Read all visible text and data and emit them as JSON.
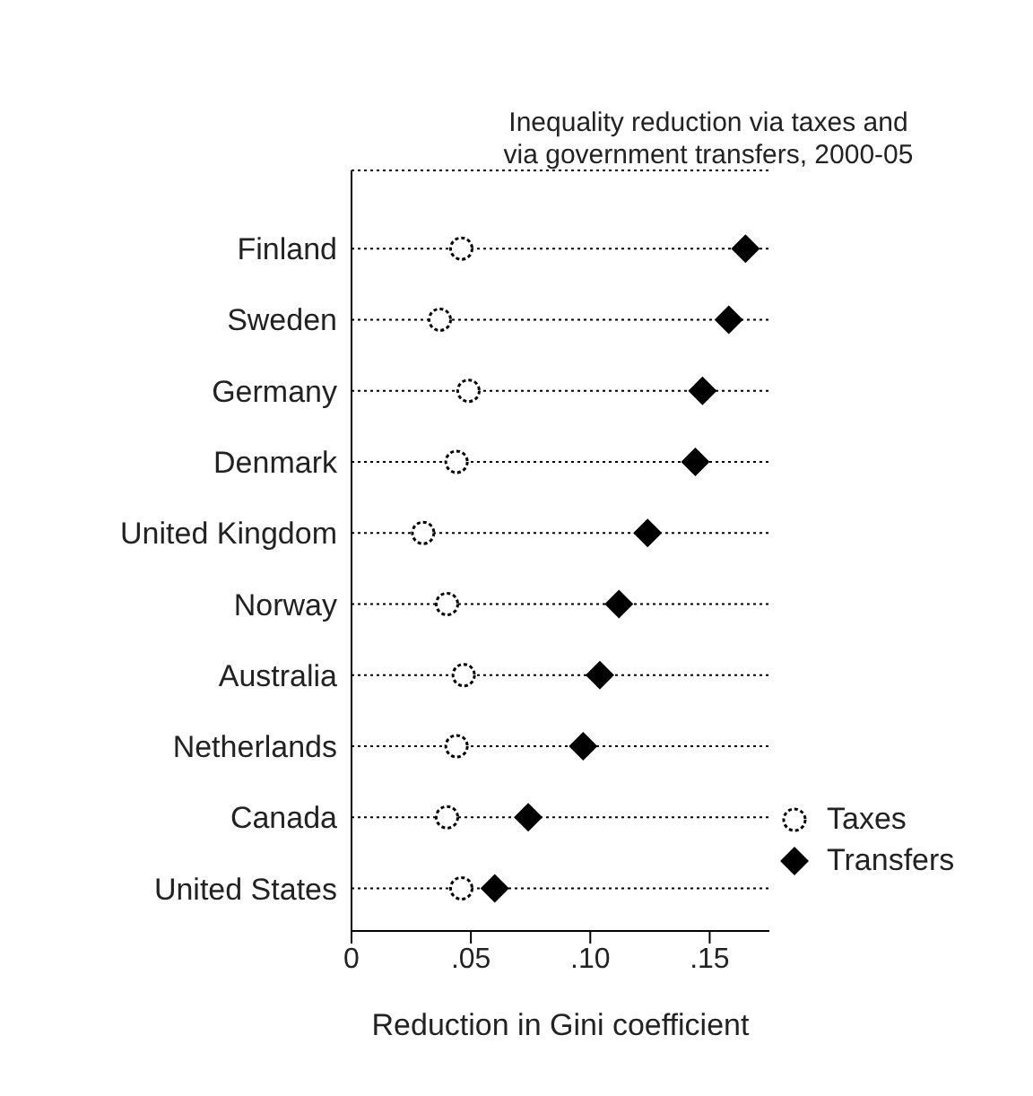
{
  "chart_data": {
    "type": "scatter",
    "title": "Inequality reduction via taxes and\nvia government transfers, 2000-05",
    "xlabel": "Reduction in Gini coefficient",
    "orientation": "horizontal",
    "categories": [
      "Finland",
      "Sweden",
      "Germany",
      "Denmark",
      "United Kingdom",
      "Norway",
      "Australia",
      "Netherlands",
      "Canada",
      "United States"
    ],
    "series": [
      {
        "name": "Taxes",
        "color": "#000000",
        "marker": "circle",
        "values": [
          0.046,
          0.037,
          0.049,
          0.044,
          0.03,
          0.04,
          0.047,
          0.044,
          0.04,
          0.046
        ]
      },
      {
        "name": "Transfers",
        "color": "#000000",
        "marker": "diamond",
        "values": [
          0.165,
          0.158,
          0.147,
          0.144,
          0.124,
          0.112,
          0.104,
          0.097,
          0.074,
          0.06
        ]
      }
    ],
    "xlim": [
      0,
      0.175
    ],
    "xticks": [
      0,
      {
        "value": 0.05,
        "label": ".05"
      },
      {
        "value": 0.1,
        "label": ".10"
      },
      {
        "value": 0.15,
        "label": ".15"
      }
    ],
    "grid": "y",
    "legend": "bottom right"
  }
}
